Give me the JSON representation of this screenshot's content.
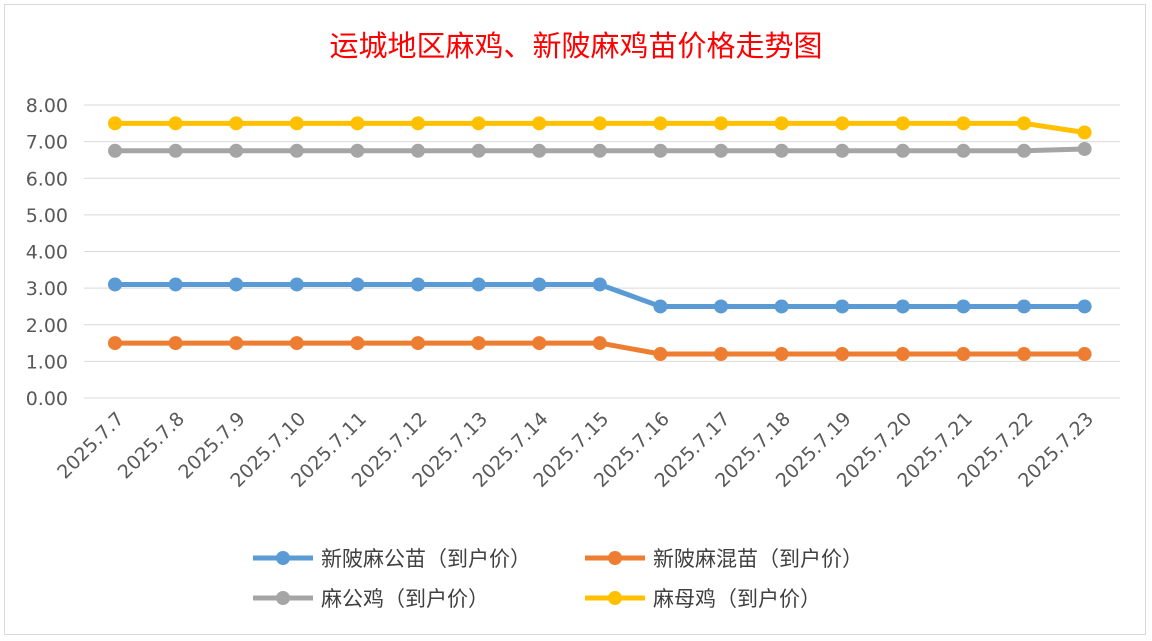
{
  "chart_data": {
    "type": "line",
    "title": "运城地区麻鸡、新陂麻鸡苗价格走势图",
    "categories": [
      "2025.7.7",
      "2025.7.8",
      "2025.7.9",
      "2025.7.10",
      "2025.7.11",
      "2025.7.12",
      "2025.7.13",
      "2025.7.14",
      "2025.7.15",
      "2025.7.16",
      "2025.7.17",
      "2025.7.18",
      "2025.7.19",
      "2025.7.20",
      "2025.7.21",
      "2025.7.22",
      "2025.7.23"
    ],
    "y_ticks": [
      "0.00",
      "1.00",
      "2.00",
      "3.00",
      "4.00",
      "5.00",
      "6.00",
      "7.00",
      "8.00"
    ],
    "ylim": [
      0,
      8
    ],
    "grid": true,
    "legend_position": "bottom",
    "series": [
      {
        "name": "新陂麻公苗（到户价）",
        "color": "#5b9bd5",
        "values": [
          3.1,
          3.1,
          3.1,
          3.1,
          3.1,
          3.1,
          3.1,
          3.1,
          3.1,
          2.5,
          2.5,
          2.5,
          2.5,
          2.5,
          2.5,
          2.5,
          2.5
        ]
      },
      {
        "name": "新陂麻混苗（到户价）",
        "color": "#ed7d31",
        "values": [
          1.5,
          1.5,
          1.5,
          1.5,
          1.5,
          1.5,
          1.5,
          1.5,
          1.5,
          1.2,
          1.2,
          1.2,
          1.2,
          1.2,
          1.2,
          1.2,
          1.2
        ]
      },
      {
        "name": "麻公鸡（到户价）",
        "color": "#a5a5a5",
        "values": [
          6.75,
          6.75,
          6.75,
          6.75,
          6.75,
          6.75,
          6.75,
          6.75,
          6.75,
          6.75,
          6.75,
          6.75,
          6.75,
          6.75,
          6.75,
          6.75,
          6.8
        ]
      },
      {
        "name": "麻母鸡（到户价）",
        "color": "#ffc000",
        "values": [
          7.5,
          7.5,
          7.5,
          7.5,
          7.5,
          7.5,
          7.5,
          7.5,
          7.5,
          7.5,
          7.5,
          7.5,
          7.5,
          7.5,
          7.5,
          7.5,
          7.25
        ]
      }
    ]
  }
}
